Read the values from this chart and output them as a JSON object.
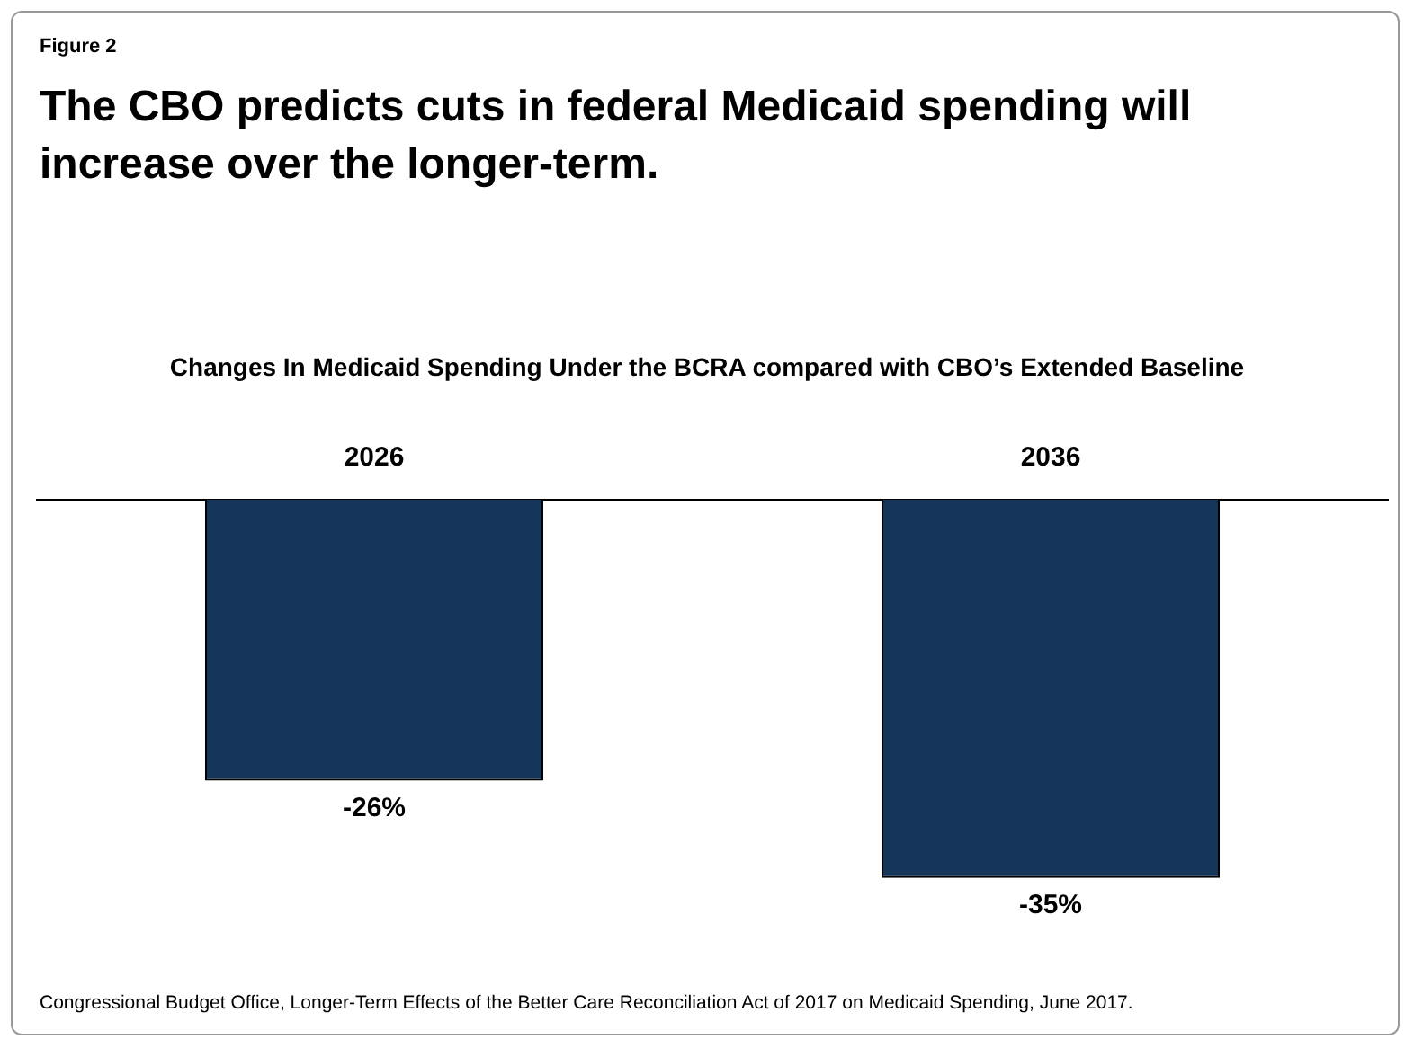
{
  "chart_data": {
    "type": "bar",
    "title": "The CBO predicts cuts in federal Medicaid spending will increase over the longer-term.",
    "subtitle": "Changes In Medicaid Spending Under the BCRA compared with CBO’s Extended Baseline",
    "categories": [
      "2026",
      "2036"
    ],
    "values": [
      -26,
      -35
    ],
    "color": "#15355a",
    "value_labels": [
      "-26%",
      "-35%"
    ],
    "grid": false,
    "legend": false,
    "annotations": [
      "Figure 2",
      "Congressional Budget Office, Longer-Term Effects of the Better Care Reconciliation Act of 2017 on Medicaid Spending, June 2017."
    ]
  }
}
